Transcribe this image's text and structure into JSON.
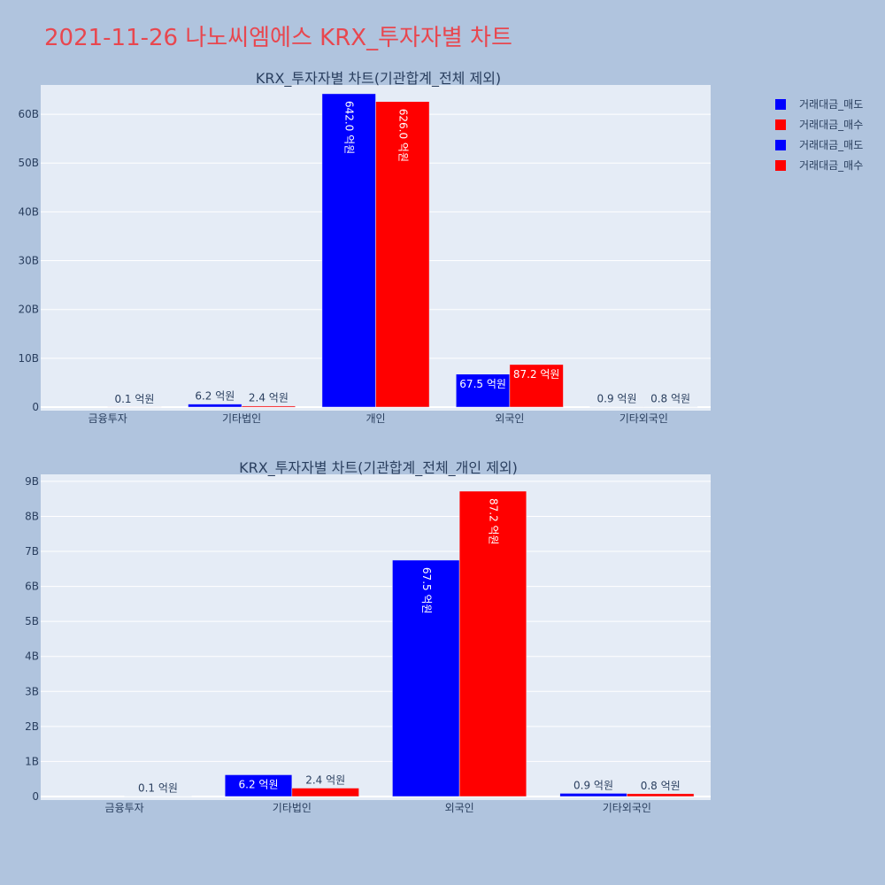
{
  "page_title": "2021-11-26 나노씨엠에스 KRX_투자자별 차트",
  "colors": {
    "sell": "#0000ff",
    "buy": "#ff0000",
    "background": "#b0c4de",
    "plot_bg": "#e5ecf6"
  },
  "legend": [
    {
      "label": "거래대금_매도",
      "color": "#0000ff"
    },
    {
      "label": "거래대금_매수",
      "color": "#ff0000"
    },
    {
      "label": "거래대금_매도",
      "color": "#0000ff"
    },
    {
      "label": "거래대금_매수",
      "color": "#ff0000"
    }
  ],
  "chart_data": [
    {
      "type": "bar",
      "title": "KRX_투자자별 차트(기관합계_전체 제외)",
      "categories": [
        "금융투자",
        "기타법인",
        "개인",
        "외국인",
        "기타외국인"
      ],
      "yticks": [
        "0",
        "10B",
        "20B",
        "30B",
        "40B",
        "50B",
        "60B"
      ],
      "ylim": [
        0,
        66
      ],
      "y_unit": "B",
      "series": [
        {
          "name": "거래대금_매도",
          "color": "#0000ff",
          "values": [
            0,
            0.62,
            64.2,
            6.75,
            0.09
          ],
          "labels": [
            "",
            "6.2 억원",
            "642.0 억원",
            "67.5 억원",
            "0.9 억원"
          ]
        },
        {
          "name": "거래대금_매수",
          "color": "#ff0000",
          "values": [
            0.01,
            0.24,
            62.6,
            8.72,
            0.08
          ],
          "labels": [
            "0.1 억원",
            "2.4 억원",
            "626.0 억원",
            "87.2 억원",
            "0.8 억원"
          ]
        }
      ]
    },
    {
      "type": "bar",
      "title": "KRX_투자자별 차트(기관합계_전체_개인 제외)",
      "categories": [
        "금융투자",
        "기타법인",
        "외국인",
        "기타외국인"
      ],
      "yticks": [
        "0",
        "1B",
        "2B",
        "3B",
        "4B",
        "5B",
        "6B",
        "7B",
        "8B",
        "9B"
      ],
      "ylim": [
        0,
        9.2
      ],
      "y_unit": "B",
      "series": [
        {
          "name": "거래대금_매도",
          "color": "#0000ff",
          "values": [
            0,
            0.62,
            6.75,
            0.09
          ],
          "labels": [
            "",
            "6.2 억원",
            "67.5 억원",
            "0.9 억원"
          ]
        },
        {
          "name": "거래대금_매수",
          "color": "#ff0000",
          "values": [
            0.01,
            0.24,
            8.72,
            0.08
          ],
          "labels": [
            "0.1 억원",
            "2.4 억원",
            "87.2 억원",
            "0.8 억원"
          ]
        }
      ]
    }
  ]
}
